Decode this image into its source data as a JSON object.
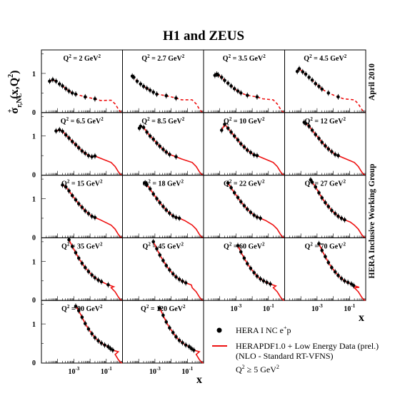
{
  "title": "H1 and ZEUS",
  "ylabel": {
    "base": "σ",
    "sub": "r,NC",
    "sup": "+",
    "args": "(x,Q",
    "args_sup": "2",
    "args_end": ")"
  },
  "xlabel": "x",
  "side_top": "April 2010",
  "side_mid": "HERA Inclusive Working Group",
  "legend": {
    "data_label": "HERA I NC e",
    "data_sup": "+",
    "data_tail": "p",
    "fit_line1": "HERAPDF1.0 + Low Energy Data (prel.)",
    "fit_line2": "(NLO  -  Standard RT-VFNS)",
    "fit_line3": "Q",
    "fit_line3_sup": "2",
    "fit_line3_tail": " ≥ 5 GeV",
    "fit_line3_sup2": "2"
  },
  "colors": {
    "data": "#000000",
    "fit": "#ee1111"
  },
  "chart_data": {
    "type": "scatter",
    "title": "H1 and ZEUS",
    "xlabel": "x",
    "ylabel": "σ r,NC +(x,Q²)",
    "x_scale": "log",
    "xlim": [
      1e-05,
      1
    ],
    "ylim": [
      0,
      1.6
    ],
    "x_ticks": [
      "10",
      "10"
    ],
    "x_tick_sup": [
      "-3",
      "-1"
    ],
    "y_ticks": [
      "0",
      "1"
    ],
    "panels": [
      {
        "label": "Q² = 2 GeV²",
        "q2": "2",
        "fit_style": "dashed",
        "points": [
          [
            3.2e-05,
            0.8
          ],
          [
            5e-05,
            0.84
          ],
          [
            8e-05,
            0.8
          ],
          [
            0.00013,
            0.73
          ],
          [
            0.0002,
            0.68
          ],
          [
            0.00032,
            0.61
          ],
          [
            0.0005,
            0.55
          ],
          [
            0.0008,
            0.5
          ],
          [
            0.0013,
            0.47
          ],
          [
            0.005,
            0.4
          ],
          [
            0.02,
            0.35
          ]
        ]
      },
      {
        "label": "Q² = 2.7 GeV²",
        "q2": "2.7",
        "fit_style": "dashed",
        "points": [
          [
            4e-05,
            0.93
          ],
          [
            5e-05,
            0.9
          ],
          [
            8e-05,
            0.8
          ],
          [
            0.00013,
            0.73
          ],
          [
            0.0002,
            0.67
          ],
          [
            0.00032,
            0.62
          ],
          [
            0.0005,
            0.57
          ],
          [
            0.0008,
            0.52
          ],
          [
            0.0013,
            0.47
          ],
          [
            0.005,
            0.43
          ],
          [
            0.02,
            0.37
          ]
        ]
      },
      {
        "label": "Q² = 3.5 GeV²",
        "q2": "3.5",
        "fit_style": "dashed",
        "points": [
          [
            5e-05,
            0.95
          ],
          [
            6.5e-05,
            0.98
          ],
          [
            8e-05,
            0.96
          ],
          [
            0.00013,
            0.9
          ],
          [
            0.0002,
            0.82
          ],
          [
            0.00032,
            0.75
          ],
          [
            0.0005,
            0.68
          ],
          [
            0.0008,
            0.61
          ],
          [
            0.0013,
            0.55
          ],
          [
            0.002,
            0.5
          ],
          [
            0.005,
            0.44
          ],
          [
            0.02,
            0.4
          ]
        ]
      },
      {
        "label": "Q² = 4.5 GeV²",
        "q2": "4.5",
        "fit_style": "dashed",
        "points": [
          [
            6e-05,
            1.05
          ],
          [
            8e-05,
            1.12
          ],
          [
            0.00013,
            1.04
          ],
          [
            0.0002,
            0.98
          ],
          [
            0.00032,
            0.9
          ],
          [
            0.0005,
            0.83
          ],
          [
            0.0008,
            0.74
          ],
          [
            0.0013,
            0.67
          ],
          [
            0.002,
            0.6
          ],
          [
            0.005,
            0.5
          ],
          [
            0.02,
            0.4
          ]
        ]
      },
      {
        "label": "Q² = 6.5 GeV²",
        "q2": "6.5",
        "fit_style": "solid",
        "points": [
          [
            8e-05,
            1.13
          ],
          [
            0.00013,
            1.16
          ],
          [
            0.0002,
            1.12
          ],
          [
            0.00032,
            1.03
          ],
          [
            0.0005,
            0.95
          ],
          [
            0.0008,
            0.86
          ],
          [
            0.0013,
            0.78
          ],
          [
            0.002,
            0.7
          ],
          [
            0.0032,
            0.62
          ],
          [
            0.005,
            0.56
          ],
          [
            0.008,
            0.5
          ],
          [
            0.013,
            0.47
          ],
          [
            0.02,
            0.49
          ]
        ]
      },
      {
        "label": "Q² = 8.5 GeV²",
        "q2": "8.5",
        "fit_style": "solid",
        "points": [
          [
            0.00011,
            1.2
          ],
          [
            0.00013,
            1.25
          ],
          [
            0.0002,
            1.22
          ],
          [
            0.00032,
            1.1
          ],
          [
            0.0005,
            1.0
          ],
          [
            0.0008,
            0.92
          ],
          [
            0.0013,
            0.82
          ],
          [
            0.002,
            0.74
          ],
          [
            0.0032,
            0.66
          ],
          [
            0.005,
            0.59
          ],
          [
            0.008,
            0.53
          ],
          [
            0.02,
            0.47
          ]
        ]
      },
      {
        "label": "Q² = 10 GeV²",
        "q2": "10",
        "fit_style": "solid",
        "points": [
          [
            0.00013,
            1.15
          ],
          [
            0.0002,
            1.3
          ],
          [
            0.00032,
            1.2
          ],
          [
            0.0005,
            1.1
          ],
          [
            0.0008,
            1.0
          ],
          [
            0.0013,
            0.9
          ],
          [
            0.002,
            0.8
          ],
          [
            0.0032,
            0.72
          ],
          [
            0.005,
            0.64
          ],
          [
            0.008,
            0.58
          ],
          [
            0.013,
            0.52
          ],
          [
            0.02,
            0.5
          ]
        ]
      },
      {
        "label": "Q² = 12 GeV²",
        "q2": "12",
        "fit_style": "solid",
        "points": [
          [
            0.00016,
            1.35
          ],
          [
            0.0002,
            1.32
          ],
          [
            0.00032,
            1.25
          ],
          [
            0.0005,
            1.15
          ],
          [
            0.0008,
            1.04
          ],
          [
            0.0013,
            0.94
          ],
          [
            0.002,
            0.84
          ],
          [
            0.0032,
            0.75
          ],
          [
            0.005,
            0.67
          ],
          [
            0.008,
            0.6
          ],
          [
            0.013,
            0.53
          ],
          [
            0.02,
            0.5
          ]
        ]
      },
      {
        "label": "Q² = 15 GeV²",
        "q2": "15",
        "fit_style": "solid",
        "points": [
          [
            0.0002,
            1.35
          ],
          [
            0.00032,
            1.3
          ],
          [
            0.0005,
            1.2
          ],
          [
            0.0008,
            1.08
          ],
          [
            0.0013,
            0.97
          ],
          [
            0.002,
            0.87
          ],
          [
            0.0032,
            0.78
          ],
          [
            0.005,
            0.69
          ],
          [
            0.008,
            0.62
          ],
          [
            0.013,
            0.55
          ],
          [
            0.02,
            0.52
          ]
        ]
      },
      {
        "label": "Q² = 18 GeV²",
        "q2": "18",
        "fit_style": "solid",
        "points": [
          [
            0.00025,
            1.4
          ],
          [
            0.00032,
            1.36
          ],
          [
            0.0005,
            1.25
          ],
          [
            0.0008,
            1.12
          ],
          [
            0.0013,
            1.0
          ],
          [
            0.002,
            0.9
          ],
          [
            0.0032,
            0.8
          ],
          [
            0.005,
            0.71
          ],
          [
            0.008,
            0.63
          ],
          [
            0.013,
            0.56
          ],
          [
            0.02,
            0.52
          ],
          [
            0.032,
            0.5
          ]
        ]
      },
      {
        "label": "Q² = 22 GeV²",
        "q2": "22",
        "fit_style": "solid",
        "points": [
          [
            0.00032,
            1.4
          ],
          [
            0.0005,
            1.28
          ],
          [
            0.0008,
            1.15
          ],
          [
            0.0013,
            1.03
          ],
          [
            0.002,
            0.92
          ],
          [
            0.0032,
            0.82
          ],
          [
            0.005,
            0.73
          ],
          [
            0.008,
            0.65
          ],
          [
            0.013,
            0.58
          ],
          [
            0.02,
            0.53
          ],
          [
            0.032,
            0.5
          ]
        ]
      },
      {
        "label": "Q² = 27 GeV²",
        "q2": "27",
        "fit_style": "solid",
        "points": [
          [
            0.0004,
            1.48
          ],
          [
            0.0005,
            1.42
          ],
          [
            0.0008,
            1.3
          ],
          [
            0.0013,
            1.15
          ],
          [
            0.002,
            1.02
          ],
          [
            0.0032,
            0.9
          ],
          [
            0.005,
            0.8
          ],
          [
            0.008,
            0.7
          ],
          [
            0.013,
            0.62
          ],
          [
            0.02,
            0.55
          ],
          [
            0.032,
            0.5
          ],
          [
            0.05,
            0.46
          ]
        ]
      },
      {
        "label": "Q² = 35 GeV²",
        "q2": "35",
        "fit_style": "solid",
        "points": [
          [
            0.0005,
            1.55
          ],
          [
            0.0008,
            1.38
          ],
          [
            0.0013,
            1.22
          ],
          [
            0.002,
            1.08
          ],
          [
            0.0032,
            0.95
          ],
          [
            0.005,
            0.84
          ],
          [
            0.008,
            0.74
          ],
          [
            0.013,
            0.65
          ],
          [
            0.02,
            0.58
          ],
          [
            0.032,
            0.52
          ],
          [
            0.05,
            0.48
          ],
          [
            0.13,
            0.4
          ]
        ]
      },
      {
        "label": "Q² = 45 GeV²",
        "q2": "45",
        "fit_style": "solid",
        "points": [
          [
            0.0008,
            1.5
          ],
          [
            0.0013,
            1.32
          ],
          [
            0.002,
            1.16
          ],
          [
            0.0032,
            1.02
          ],
          [
            0.005,
            0.89
          ],
          [
            0.008,
            0.78
          ],
          [
            0.013,
            0.68
          ],
          [
            0.02,
            0.6
          ],
          [
            0.032,
            0.54
          ],
          [
            0.05,
            0.49
          ],
          [
            0.08,
            0.45
          ]
        ]
      },
      {
        "label": "Q² = 60 GeV²",
        "q2": "60",
        "fit_style": "solid",
        "points": [
          [
            0.0013,
            1.4
          ],
          [
            0.002,
            1.24
          ],
          [
            0.0032,
            1.08
          ],
          [
            0.005,
            0.94
          ],
          [
            0.008,
            0.82
          ],
          [
            0.013,
            0.71
          ],
          [
            0.02,
            0.62
          ],
          [
            0.032,
            0.55
          ],
          [
            0.05,
            0.5
          ],
          [
            0.08,
            0.46
          ],
          [
            0.13,
            0.42
          ]
        ]
      },
      {
        "label": "Q² = 70 GeV²",
        "q2": "70",
        "fit_style": "solid",
        "points": [
          [
            0.0013,
            1.45
          ],
          [
            0.002,
            1.28
          ],
          [
            0.0032,
            1.12
          ],
          [
            0.005,
            0.97
          ],
          [
            0.008,
            0.84
          ],
          [
            0.013,
            0.73
          ],
          [
            0.02,
            0.64
          ],
          [
            0.032,
            0.56
          ],
          [
            0.05,
            0.5
          ],
          [
            0.08,
            0.46
          ],
          [
            0.13,
            0.42
          ],
          [
            0.18,
            0.38
          ]
        ]
      },
      {
        "label": "Q² = 90 GeV²",
        "q2": "90",
        "fit_style": "solid",
        "points": [
          [
            0.0013,
            1.45
          ],
          [
            0.002,
            1.34
          ],
          [
            0.0032,
            1.17
          ],
          [
            0.005,
            1.01
          ],
          [
            0.008,
            0.87
          ],
          [
            0.013,
            0.75
          ],
          [
            0.02,
            0.65
          ],
          [
            0.032,
            0.57
          ],
          [
            0.05,
            0.51
          ],
          [
            0.08,
            0.46
          ],
          [
            0.13,
            0.42
          ],
          [
            0.18,
            0.37
          ],
          [
            0.25,
            0.33
          ]
        ]
      },
      {
        "label": "Q² = 120 GeV²",
        "q2": "120",
        "fit_style": "solid",
        "points": [
          [
            0.002,
            1.4
          ],
          [
            0.0032,
            1.22
          ],
          [
            0.005,
            1.05
          ],
          [
            0.008,
            0.9
          ],
          [
            0.013,
            0.78
          ],
          [
            0.02,
            0.67
          ],
          [
            0.032,
            0.58
          ],
          [
            0.05,
            0.52
          ],
          [
            0.08,
            0.46
          ],
          [
            0.13,
            0.42
          ],
          [
            0.18,
            0.37
          ],
          [
            0.25,
            0.33
          ]
        ]
      }
    ]
  }
}
